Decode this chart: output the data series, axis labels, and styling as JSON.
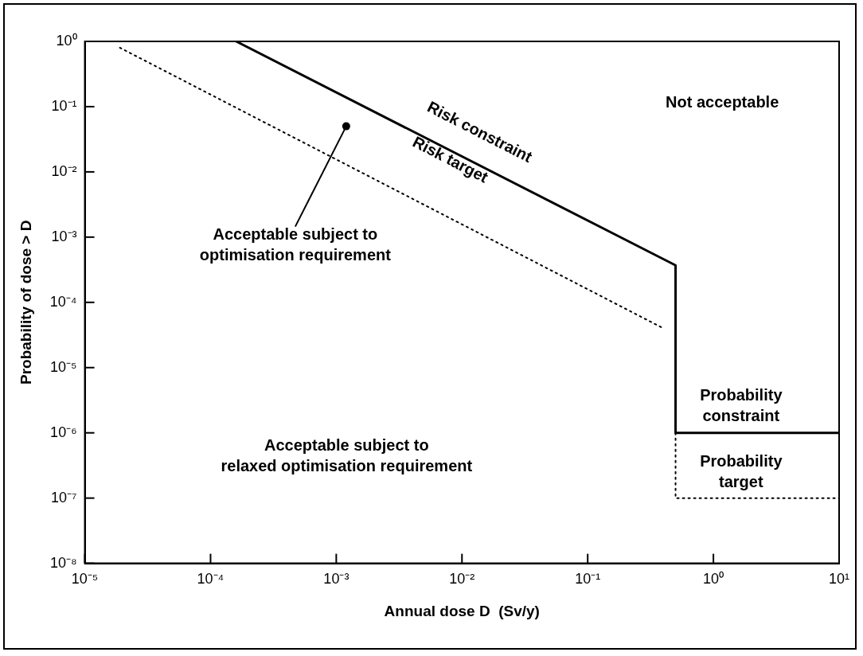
{
  "chart_data": {
    "type": "line",
    "xlabel": "Annual dose D  (Sv/y)",
    "ylabel": "Probability of dose > D",
    "log": "xy",
    "grid": false,
    "legend": false,
    "marker": "none",
    "xlim": [
      1e-05,
      10
    ],
    "xticks": [
      {
        "value": 1e-05,
        "label": "10⁻⁵"
      },
      {
        "value": 0.0001,
        "label": "10⁻⁴"
      },
      {
        "value": 0.001,
        "label": "10⁻³"
      },
      {
        "value": 0.01,
        "label": "10⁻²"
      },
      {
        "value": 0.1,
        "label": "10⁻¹"
      },
      {
        "value": 1,
        "label": "10⁰"
      },
      {
        "value": 10,
        "label": "10¹"
      }
    ],
    "ylim": [
      1e-08,
      1
    ],
    "yticks": [
      {
        "value": 1e-08,
        "label": "10⁻⁸"
      },
      {
        "value": 1e-07,
        "label": "10⁻⁷"
      },
      {
        "value": 1e-06,
        "label": "10⁻⁶"
      },
      {
        "value": 1e-05,
        "label": "10⁻⁵"
      },
      {
        "value": 0.0001,
        "label": "10⁻⁴"
      },
      {
        "value": 0.001,
        "label": "10⁻³"
      },
      {
        "value": 0.01,
        "label": "10⁻²"
      },
      {
        "value": 0.1,
        "label": "10⁻¹"
      },
      {
        "value": 1,
        "label": "10⁰"
      }
    ],
    "series": [
      {
        "color": "#000000",
        "line_style": "solid",
        "x": [
          0.00016,
          0.5,
          0.5,
          10
        ],
        "values": [
          1,
          0.00037,
          1e-06,
          1e-06
        ]
      },
      {
        "color": "#000000",
        "line_style": "dotted",
        "x": [
          1.9e-05,
          0.4
        ],
        "values": [
          0.8,
          4e-05
        ]
      },
      {
        "color": "#000000",
        "line_style": "dotted",
        "x": [
          0.5,
          0.5,
          10
        ],
        "values": [
          1e-06,
          1e-07,
          1e-07
        ]
      }
    ],
    "annotations": [
      "Risk constraint",
      "Risk target",
      "Not acceptable",
      {
        "text": "Acceptable subject to\noptimisation requirement",
        "x": 0.0012,
        "y": 0.05
      },
      "Acceptable subject to\nrelaxed optimisation requirement",
      "Probability\nconstraint",
      "Probability\ntarget"
    ]
  }
}
